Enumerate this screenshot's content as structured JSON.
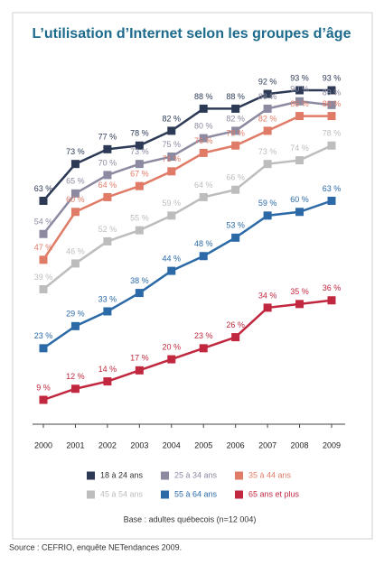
{
  "chart_data": {
    "type": "line",
    "title": "L’utilisation d’Internet selon les groupes d’âge",
    "categories": [
      "2000",
      "2001",
      "2002",
      "2003",
      "2004",
      "2005",
      "2006",
      "2007",
      "2008",
      "2009"
    ],
    "series": [
      {
        "name": "18 à 24 ans",
        "color": "#2c3a56",
        "values": [
          63,
          73,
          77,
          78,
          82,
          88,
          88,
          92,
          93,
          93
        ],
        "value_labels": [
          "63 %",
          "73 %",
          "77 %",
          "78 %",
          "82 %",
          "88 %",
          "88 %",
          "92 %",
          "93 %",
          "93 %"
        ]
      },
      {
        "name": "25 à 34 ans",
        "color": "#8b8aa1",
        "values": [
          54,
          65,
          70,
          73,
          75,
          80,
          82,
          88,
          90,
          89
        ],
        "value_labels": [
          "54 %",
          "65 %",
          "70 %",
          "73 %",
          "75 %",
          "80 %",
          "82 %",
          "88 %",
          "90 %",
          "89 %"
        ]
      },
      {
        "name": "35 à 44 ans",
        "color": "#e07b67",
        "values": [
          47,
          60,
          64,
          67,
          71,
          76,
          78,
          82,
          86,
          86
        ],
        "value_labels": [
          "47 %",
          "60 %",
          "64 %",
          "67 %",
          "71 %",
          "76 %",
          "78 %",
          "82 %",
          "86 %",
          "86 %"
        ]
      },
      {
        "name": "45 à 54 ans",
        "color": "#bdbdbd",
        "values": [
          39,
          46,
          52,
          55,
          59,
          64,
          66,
          73,
          74,
          78
        ],
        "value_labels": [
          "39 %",
          "46 %",
          "52 %",
          "55 %",
          "59 %",
          "64 %",
          "66 %",
          "73 %",
          "74 %",
          "78 %"
        ]
      },
      {
        "name": "55 à 64 ans",
        "color": "#2b6aa7",
        "values": [
          23,
          29,
          33,
          38,
          44,
          48,
          53,
          59,
          60,
          63
        ],
        "value_labels": [
          "23 %",
          "29 %",
          "33 %",
          "38 %",
          "44 %",
          "48 %",
          "53 %",
          "59 %",
          "60 %",
          "63 %"
        ]
      },
      {
        "name": "65 ans et plus",
        "color": "#c1273f",
        "values": [
          9,
          12,
          14,
          17,
          20,
          23,
          26,
          34,
          35,
          36
        ],
        "value_labels": [
          "9 %",
          "12 %",
          "14 %",
          "17 %",
          "20 %",
          "23 %",
          "26 %",
          "34 %",
          "35 %",
          "36 %"
        ]
      }
    ],
    "note": "Base : adultes québecois (n=12 004)",
    "source": "Source : CEFRIO, enquête NETendances 2009."
  }
}
